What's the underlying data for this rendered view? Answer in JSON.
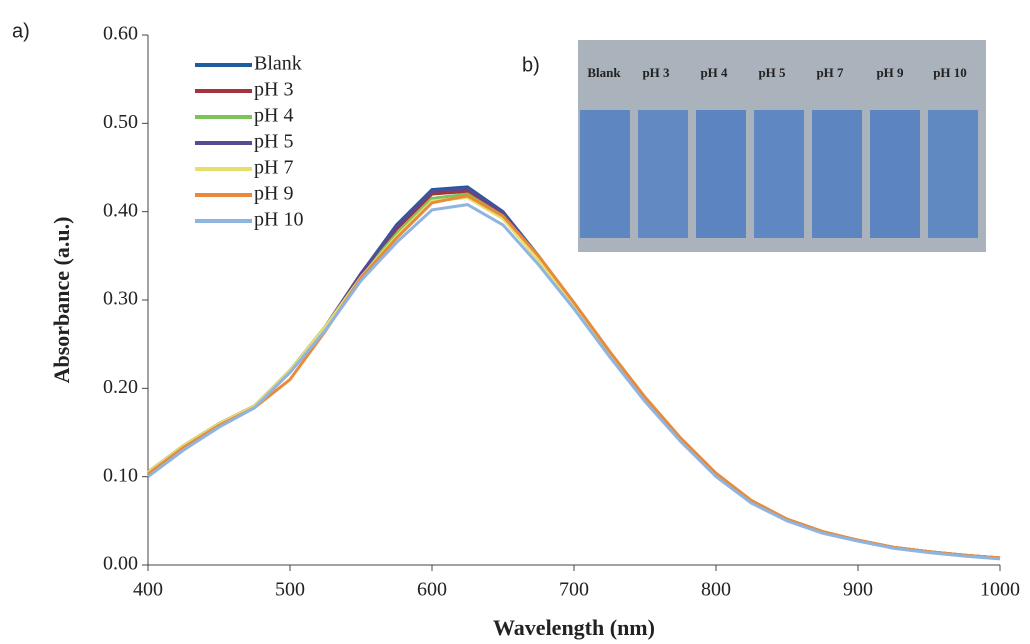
{
  "chart_data": {
    "type": "line",
    "panel_label": "a)",
    "x_label": "Wavelength (nm)",
    "y_label": "Absorbance (a.u.)",
    "x": [
      400,
      425,
      450,
      475,
      500,
      525,
      550,
      575,
      600,
      625,
      650,
      675,
      700,
      725,
      750,
      775,
      800,
      825,
      850,
      875,
      900,
      925,
      950,
      975,
      1000
    ],
    "series": [
      {
        "name": "Blank",
        "color": "#1f5c9e",
        "values": [
          0.105,
          0.135,
          0.16,
          0.18,
          0.22,
          0.27,
          0.33,
          0.385,
          0.425,
          0.428,
          0.4,
          0.35,
          0.295,
          0.24,
          0.188,
          0.142,
          0.102,
          0.072,
          0.051,
          0.037,
          0.028,
          0.02,
          0.015,
          0.011,
          0.008
        ]
      },
      {
        "name": "pH 3",
        "color": "#a3333d",
        "values": [
          0.105,
          0.135,
          0.16,
          0.18,
          0.22,
          0.27,
          0.33,
          0.38,
          0.42,
          0.423,
          0.397,
          0.348,
          0.295,
          0.24,
          0.188,
          0.142,
          0.102,
          0.072,
          0.051,
          0.037,
          0.028,
          0.02,
          0.015,
          0.011,
          0.008
        ]
      },
      {
        "name": "pH 4",
        "color": "#7cc35a",
        "values": [
          0.105,
          0.135,
          0.16,
          0.18,
          0.22,
          0.27,
          0.328,
          0.375,
          0.415,
          0.42,
          0.395,
          0.347,
          0.294,
          0.24,
          0.188,
          0.142,
          0.102,
          0.072,
          0.051,
          0.037,
          0.028,
          0.02,
          0.015,
          0.011,
          0.008
        ]
      },
      {
        "name": "pH 5",
        "color": "#574a94",
        "values": [
          0.105,
          0.135,
          0.16,
          0.18,
          0.22,
          0.27,
          0.33,
          0.383,
          0.423,
          0.426,
          0.399,
          0.349,
          0.295,
          0.24,
          0.188,
          0.142,
          0.102,
          0.072,
          0.051,
          0.037,
          0.028,
          0.02,
          0.015,
          0.011,
          0.008
        ]
      },
      {
        "name": "pH 7",
        "color": "#e6df6e",
        "values": [
          0.105,
          0.135,
          0.16,
          0.18,
          0.22,
          0.27,
          0.326,
          0.372,
          0.412,
          0.416,
          0.392,
          0.345,
          0.293,
          0.24,
          0.188,
          0.142,
          0.102,
          0.072,
          0.051,
          0.037,
          0.028,
          0.02,
          0.015,
          0.011,
          0.008
        ]
      },
      {
        "name": "pH 9",
        "color": "#e88a3a",
        "values": [
          0.103,
          0.133,
          0.158,
          0.178,
          0.21,
          0.265,
          0.325,
          0.37,
          0.41,
          0.418,
          0.395,
          0.35,
          0.297,
          0.242,
          0.19,
          0.144,
          0.104,
          0.073,
          0.052,
          0.038,
          0.028,
          0.02,
          0.015,
          0.011,
          0.008
        ]
      },
      {
        "name": "pH 10",
        "color": "#8fb4e0",
        "values": [
          0.1,
          0.13,
          0.156,
          0.178,
          0.218,
          0.266,
          0.322,
          0.365,
          0.402,
          0.408,
          0.385,
          0.34,
          0.29,
          0.236,
          0.185,
          0.14,
          0.1,
          0.07,
          0.05,
          0.036,
          0.027,
          0.019,
          0.014,
          0.01,
          0.007
        ]
      }
    ],
    "xlim": [
      400,
      1000
    ],
    "ylim": [
      0,
      0.6
    ],
    "xticks": [
      400,
      500,
      600,
      700,
      800,
      900,
      1000
    ],
    "yticks": [
      {
        "value": 0,
        "label": "0.00"
      },
      {
        "value": 0.1,
        "label": "0.10"
      },
      {
        "value": 0.2,
        "label": "0.20"
      },
      {
        "value": 0.3,
        "label": "0.30"
      },
      {
        "value": 0.4,
        "label": "0.40"
      },
      {
        "value": 0.5,
        "label": "0.50"
      },
      {
        "value": 0.6,
        "label": "0.60"
      }
    ],
    "legend": "upper left",
    "inset_label": "b)",
    "inset_vial_labels": [
      "Blank",
      "pH 3",
      "pH 4",
      "pH 5",
      "pH 7",
      "pH 9",
      "pH 10"
    ]
  }
}
